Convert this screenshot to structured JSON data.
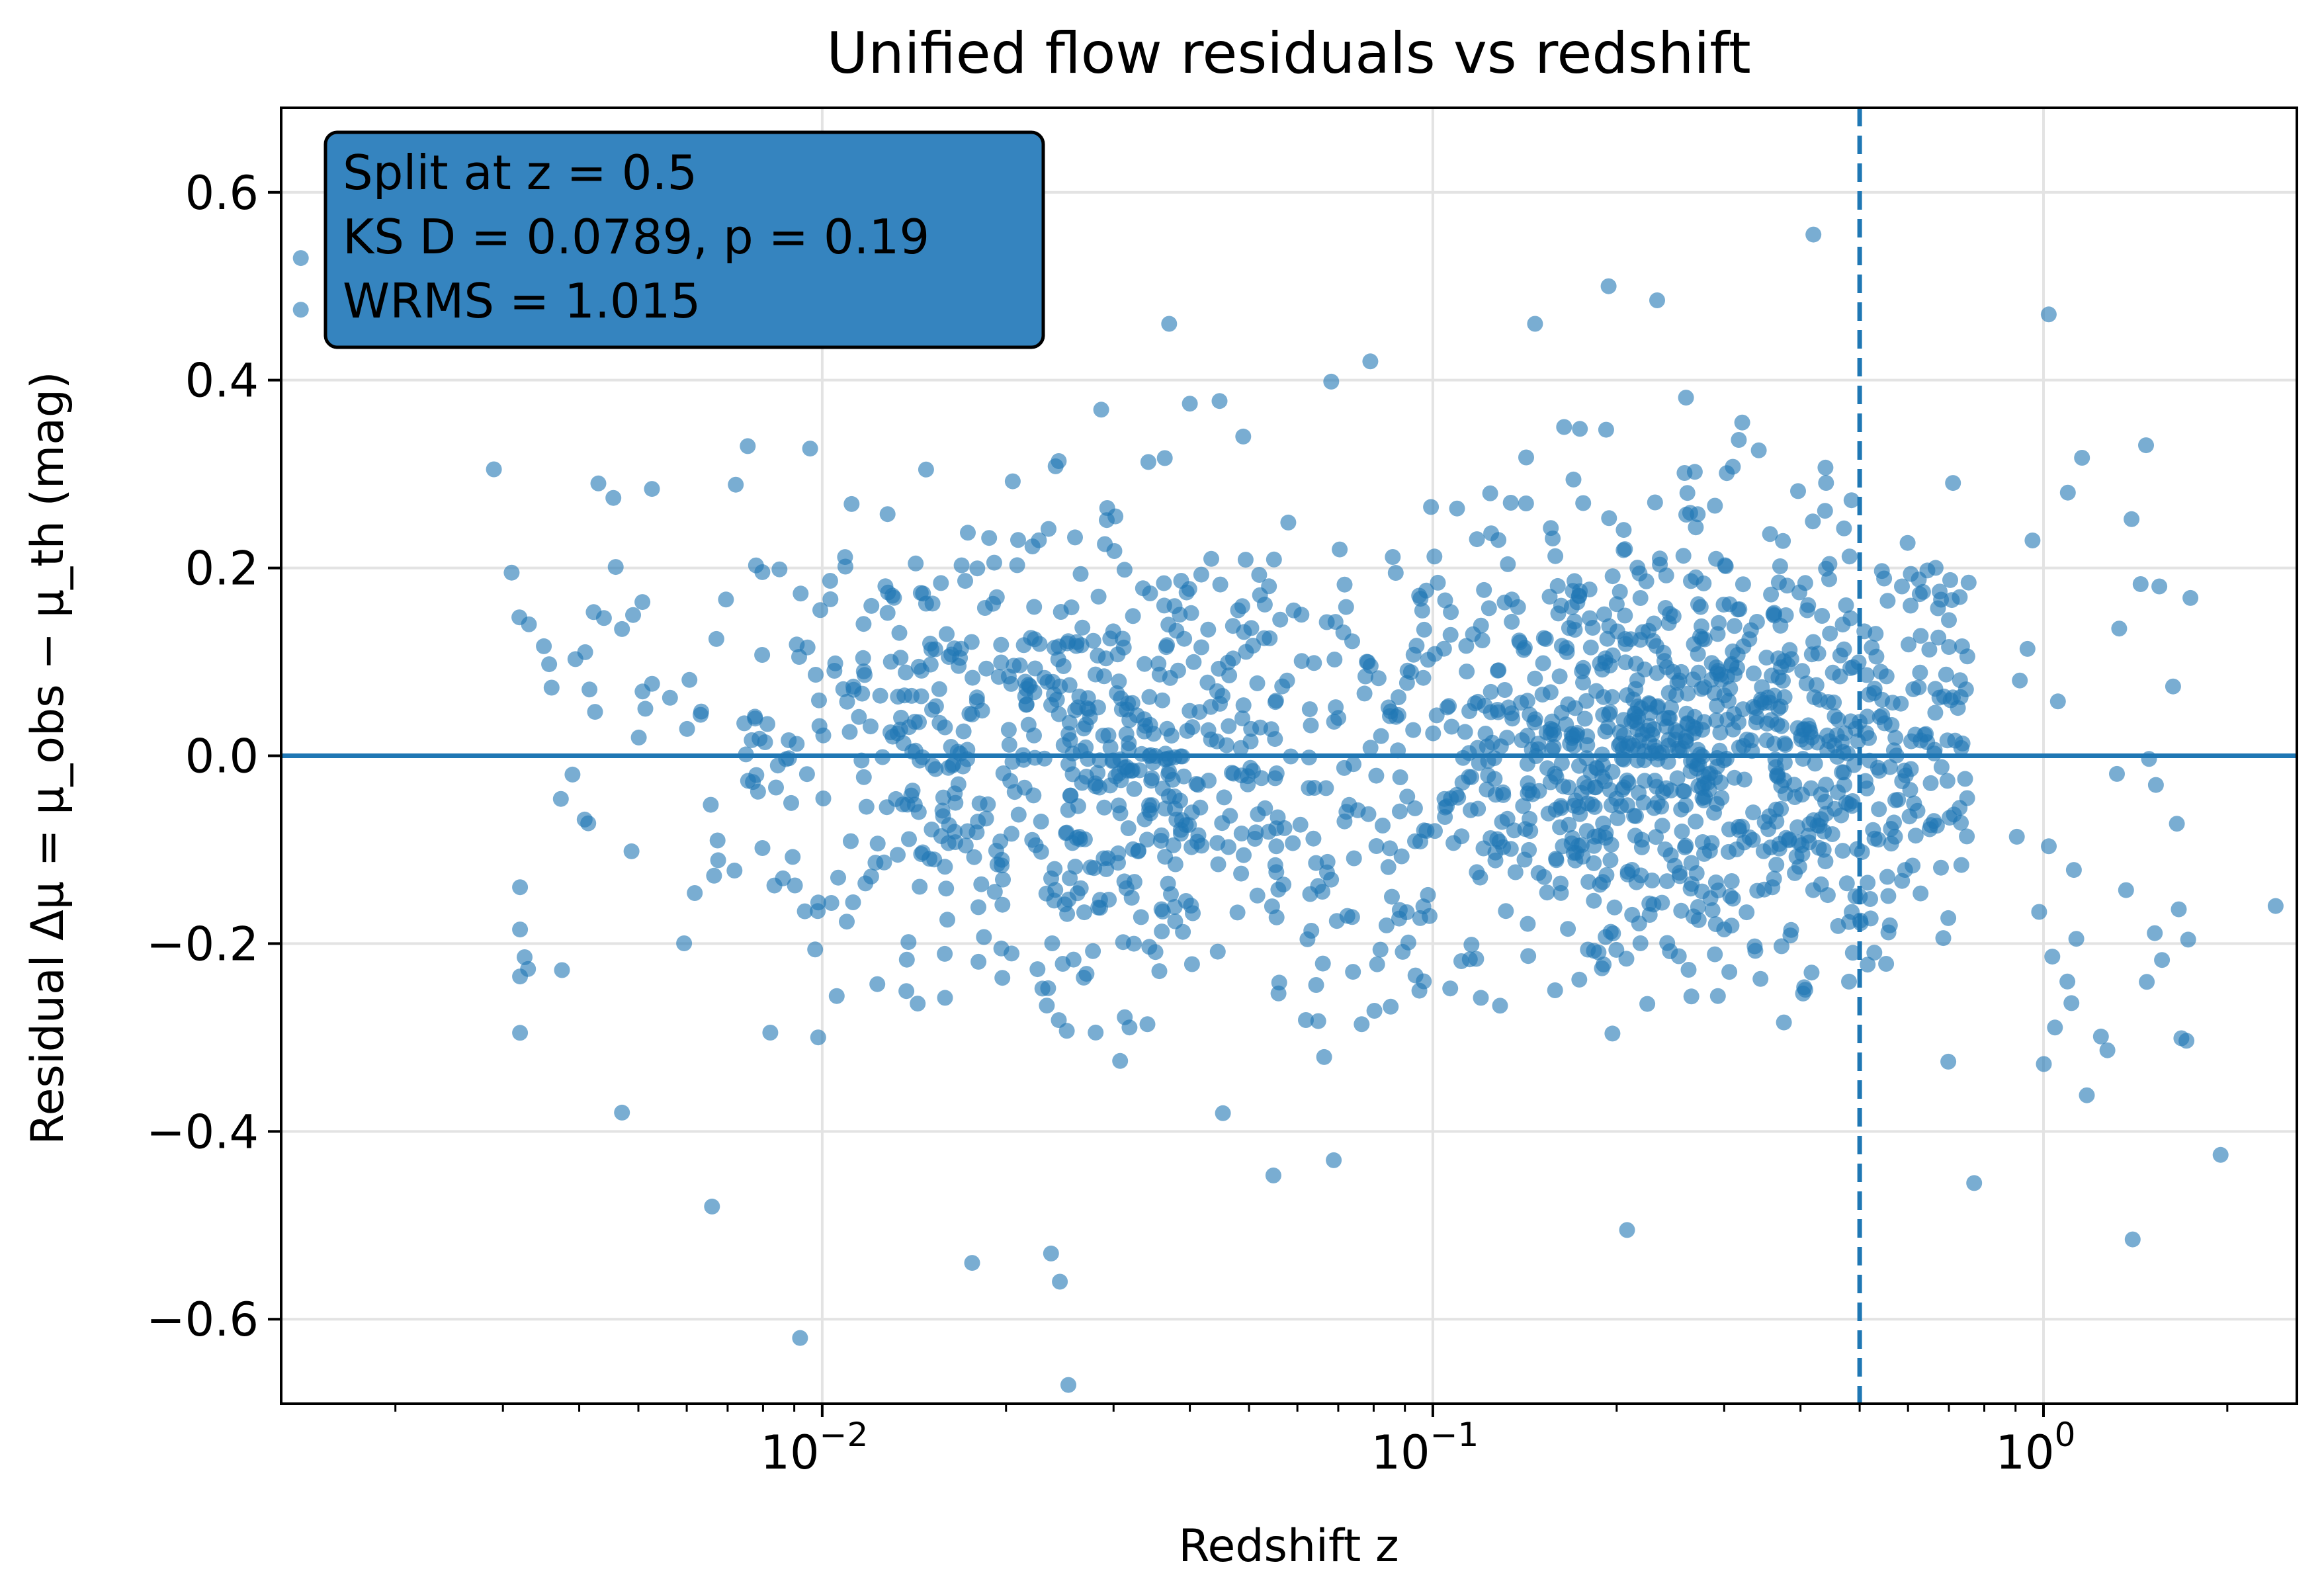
{
  "chart_data": {
    "type": "scatter",
    "title": "Unified flow residuals vs redshift",
    "xlabel": "Redshift z",
    "ylabel": "Residual Δμ = μ_obs − μ_th (mag)",
    "xscale": "log",
    "xlim": [
      0.0013,
      2.6
    ],
    "ylim": [
      -0.69,
      0.69
    ],
    "xticks": [
      {
        "value": 0.01,
        "base": "10",
        "exp": "−2"
      },
      {
        "value": 0.1,
        "base": "10",
        "exp": "−1"
      },
      {
        "value": 1,
        "base": "10",
        "exp": "0"
      }
    ],
    "yticks": [
      {
        "value": 0.6,
        "label": "0.6"
      },
      {
        "value": 0.4,
        "label": "0.4"
      },
      {
        "value": 0.2,
        "label": "0.2"
      },
      {
        "value": 0.0,
        "label": "0.0"
      },
      {
        "value": -0.2,
        "label": "−0.2"
      },
      {
        "value": -0.4,
        "label": "−0.4"
      },
      {
        "value": -0.6,
        "label": "−0.6"
      }
    ],
    "grid": true,
    "point_color": "#1f77b4",
    "point_alpha": 0.6,
    "reference_lines": [
      {
        "orientation": "horizontal",
        "value": 0.0,
        "style": "solid",
        "color": "#1f77b4"
      },
      {
        "orientation": "vertical",
        "value": 0.5,
        "style": "dashed",
        "color": "#1f77b4"
      }
    ],
    "annotation": {
      "lines": [
        "Split at z = 0.5",
        "KS D = 0.0789, p = 0.19",
        "WRMS = 1.015"
      ],
      "placement": "top-left",
      "background": "#3584bf"
    },
    "highlighted_points": [
      {
        "z": 0.0014,
        "residual": 0.53
      },
      {
        "z": 0.0014,
        "residual": 0.475
      },
      {
        "z": 0.0029,
        "residual": 0.305
      },
      {
        "z": 0.0031,
        "residual": 0.195
      },
      {
        "z": 0.0032,
        "residual": -0.14
      },
      {
        "z": 0.0032,
        "residual": -0.185
      },
      {
        "z": 0.0032,
        "residual": -0.235
      },
      {
        "z": 0.0032,
        "residual": -0.295
      },
      {
        "z": 0.0039,
        "residual": -0.02
      },
      {
        "z": 0.0043,
        "residual": 0.29
      },
      {
        "z": 0.0047,
        "residual": 0.135
      },
      {
        "z": 0.0047,
        "residual": -0.38
      },
      {
        "z": 0.0066,
        "residual": -0.48
      },
      {
        "z": 0.0092,
        "residual": -0.62
      },
      {
        "z": 0.0112,
        "residual": 0.48
      },
      {
        "z": 0.0237,
        "residual": -0.53
      },
      {
        "z": 0.0245,
        "residual": -0.56
      },
      {
        "z": 0.0253,
        "residual": -0.67
      },
      {
        "z": 0.0176,
        "residual": -0.54
      },
      {
        "z": 0.04,
        "residual": 0.375
      },
      {
        "z": 0.037,
        "residual": 0.46
      },
      {
        "z": 0.079,
        "residual": 0.42
      },
      {
        "z": 0.147,
        "residual": 0.46
      },
      {
        "z": 0.194,
        "residual": 0.5
      },
      {
        "z": 0.233,
        "residual": 0.485
      },
      {
        "z": 0.42,
        "residual": 0.555
      },
      {
        "z": 0.208,
        "residual": -0.505
      },
      {
        "z": 1.02,
        "residual": 0.47
      },
      {
        "z": 1.4,
        "residual": -0.515
      },
      {
        "z": 1.95,
        "residual": -0.425
      },
      {
        "z": 2.4,
        "residual": -0.16
      },
      {
        "z": 0.77,
        "residual": -0.455
      }
    ],
    "cluster_samples": 1700
  }
}
